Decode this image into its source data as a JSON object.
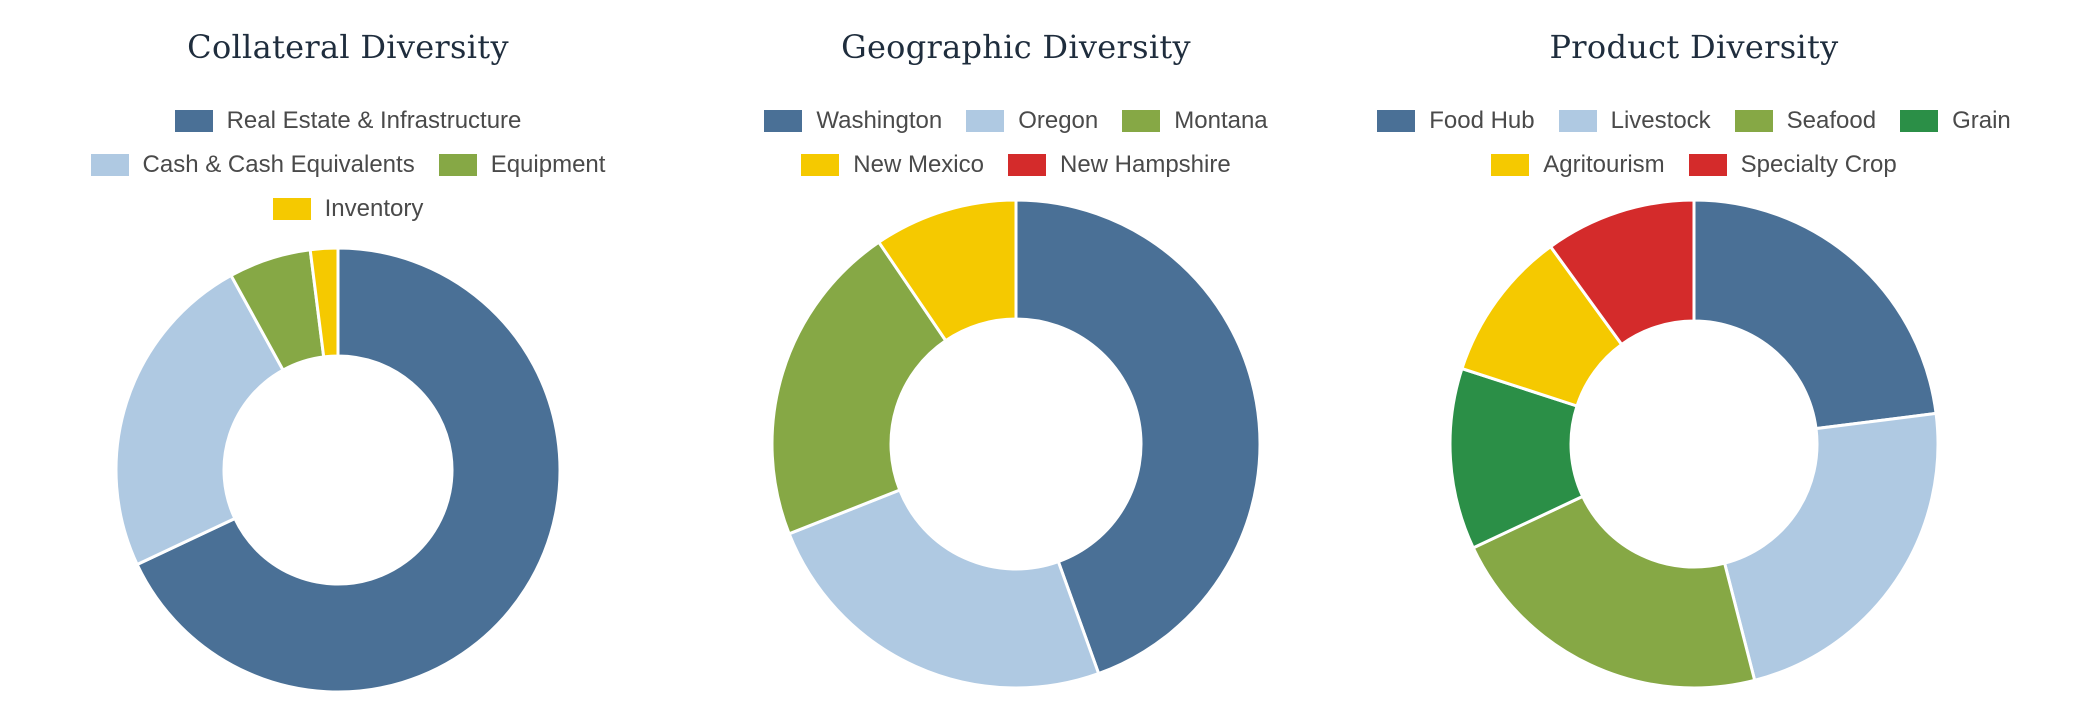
{
  "colors": {
    "blue": "#4a7096",
    "light_blue": "#afc9e2",
    "olive_green": "#86a845",
    "yellow": "#f5c900",
    "red": "#d42b2b",
    "dark_green": "#2b8f47"
  },
  "chart_data": [
    {
      "type": "pie",
      "donut": true,
      "title": "Collateral Diversity",
      "categories": [
        "Real Estate & Infrastructure",
        "Cash & Cash Equivalents",
        "Equipment",
        "Inventory"
      ],
      "values": [
        68,
        24,
        6,
        2
      ],
      "colors": [
        "#4a7096",
        "#afc9e2",
        "#86a845",
        "#f5c900"
      ],
      "legend_rows": [
        [
          0
        ],
        [
          1,
          2
        ],
        [
          3
        ]
      ],
      "legend": "top"
    },
    {
      "type": "pie",
      "donut": true,
      "title": "Geographic Diversity",
      "categories": [
        "Washington",
        "Oregon",
        "Montana",
        "New Mexico",
        "New Hampshire"
      ],
      "values": [
        44.5,
        24.5,
        21.5,
        9.5,
        0
      ],
      "colors": [
        "#4a7096",
        "#afc9e2",
        "#86a845",
        "#f5c900",
        "#d42b2b"
      ],
      "legend_rows": [
        [
          0,
          1,
          2
        ],
        [
          3,
          4
        ]
      ],
      "legend": "top"
    },
    {
      "type": "pie",
      "donut": true,
      "title": "Product Diversity",
      "categories": [
        "Food Hub",
        "Livestock",
        "Seafood",
        "Grain",
        "Agritourism",
        "Specialty Crop"
      ],
      "values": [
        23,
        23,
        22,
        12,
        10,
        10
      ],
      "colors": [
        "#4a7096",
        "#afc9e2",
        "#86a845",
        "#2b8f47",
        "#f5c900",
        "#d42b2b"
      ],
      "legend_rows": [
        [
          0,
          1,
          2,
          3
        ],
        [
          4,
          5
        ]
      ],
      "legend": "top"
    }
  ]
}
